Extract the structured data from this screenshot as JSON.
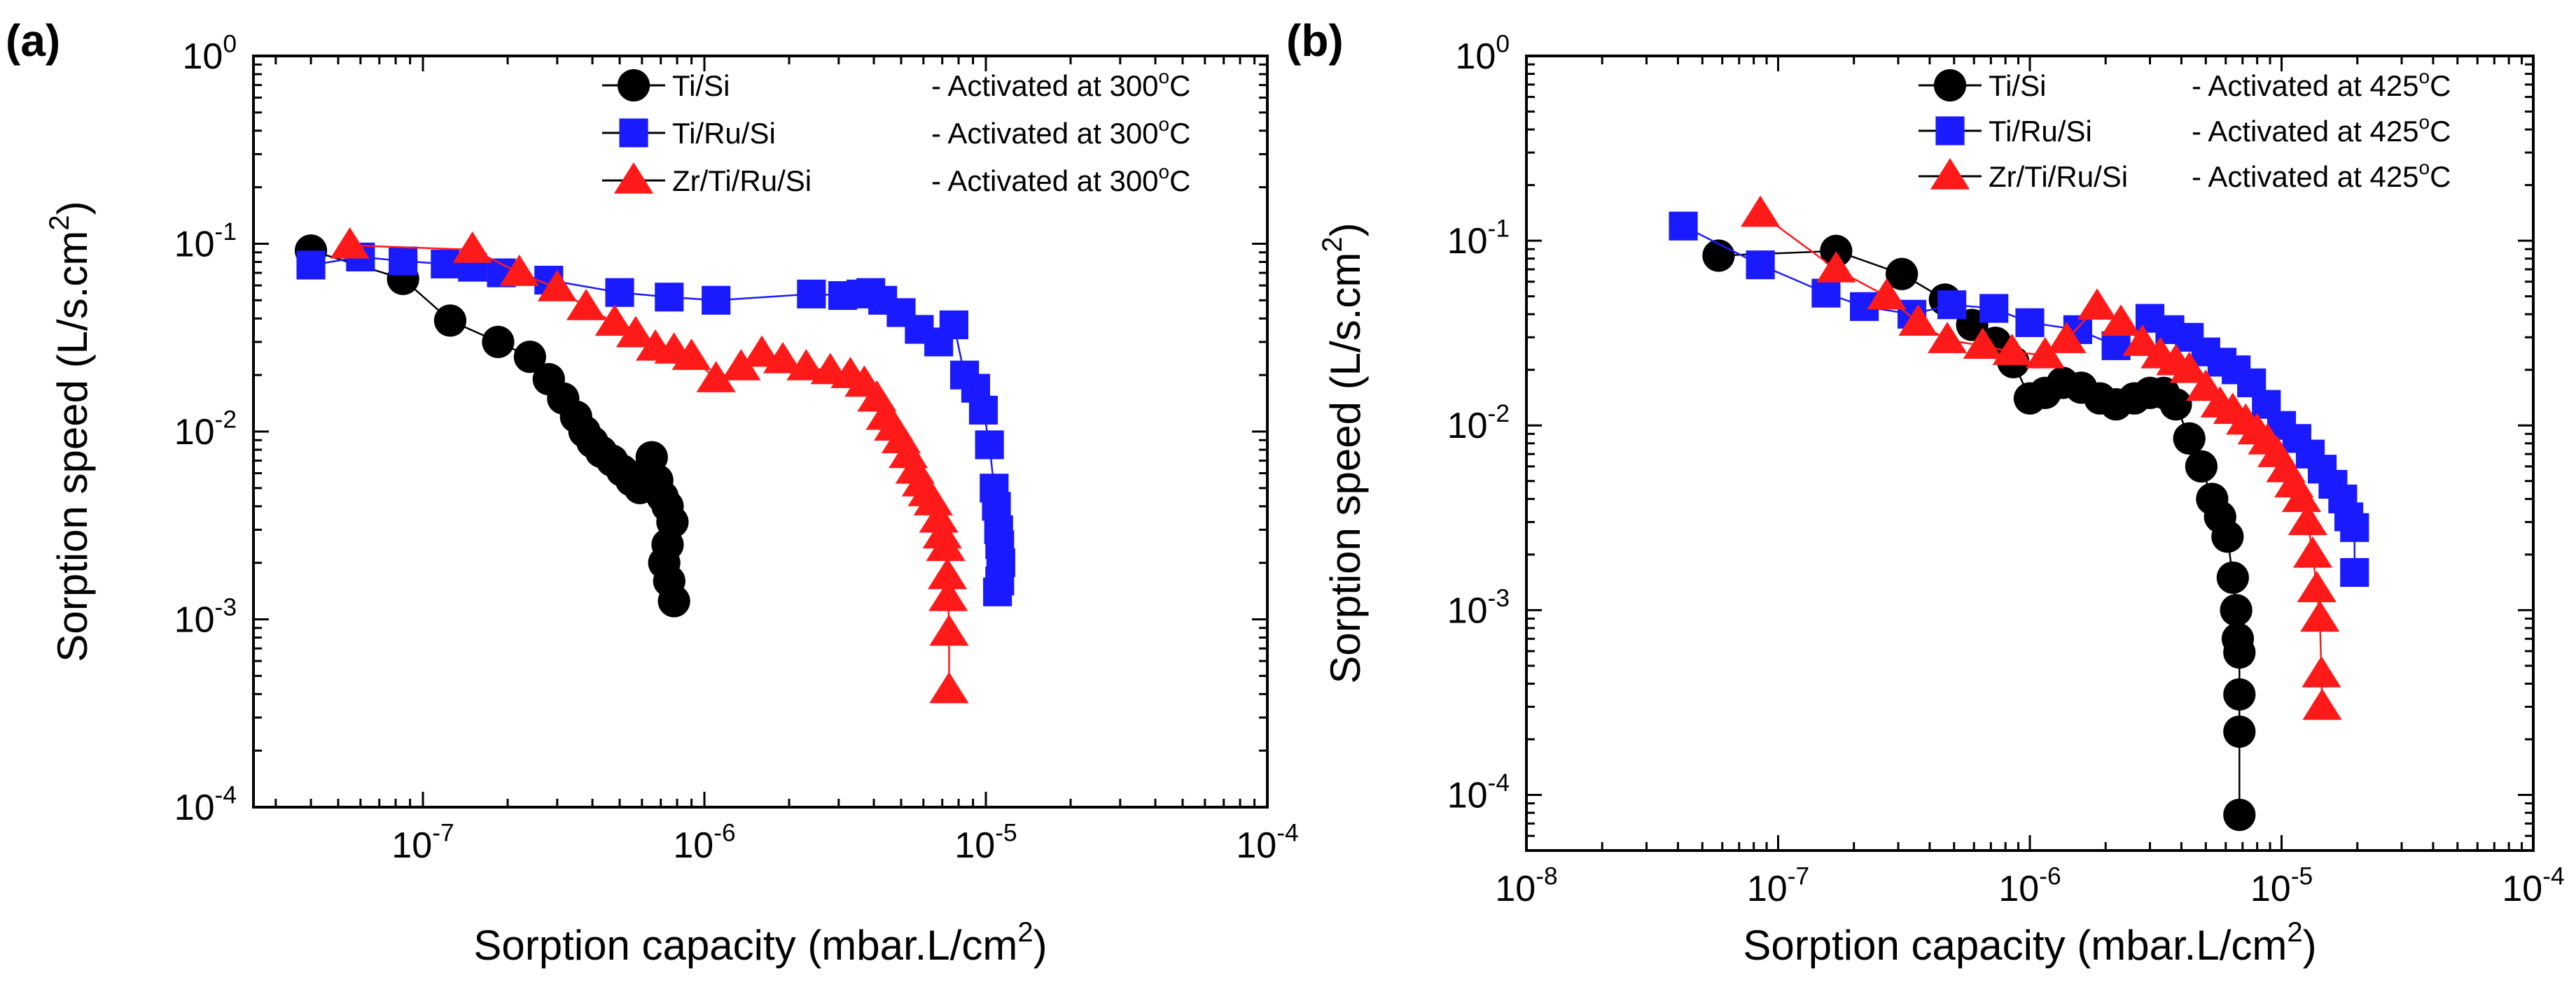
{
  "chart_data": [
    {
      "type": "scatter",
      "panel_label": "(a)",
      "xscale": "log",
      "yscale": "log",
      "xlim": [
        2.5e-08,
        0.0001
      ],
      "ylim": [
        0.0001,
        1
      ],
      "xlabel": "Sorption capacity (mbar.L/cm",
      "xlabel_sup": "2",
      "xlabel_end": ")",
      "ylabel": "Sorption speed (L/s.cm",
      "ylabel_sup": "2",
      "ylabel_end": ")",
      "x_ticks": [
        {
          "base": "10",
          "exp": "-7"
        },
        {
          "base": "10",
          "exp": "-6"
        },
        {
          "base": "10",
          "exp": "-5"
        },
        {
          "base": "10",
          "exp": "-4"
        }
      ],
      "y_ticks": [
        {
          "base": "10",
          "exp": "0"
        },
        {
          "base": "10",
          "exp": "-1"
        },
        {
          "base": "10",
          "exp": "-2"
        },
        {
          "base": "10",
          "exp": "-3"
        },
        {
          "base": "10",
          "exp": "-4"
        }
      ],
      "legend_position": "top-right",
      "series": [
        {
          "name": "Ti/Si",
          "note": "- Activated at 300",
          "deg": "o",
          "unit": "C",
          "color": "#000000",
          "marker": "circle",
          "x": [
            4e-08,
            8.5e-08,
            1.25e-07,
            1.85e-07,
            2.4e-07,
            2.8e-07,
            3.15e-07,
            3.5e-07,
            3.75e-07,
            4e-07,
            4.3e-07,
            4.7e-07,
            5.1e-07,
            5.5e-07,
            5.9e-07,
            6.2e-07,
            6.5e-07,
            6.8e-07,
            7.1e-07,
            7.4e-07,
            7.7e-07,
            7.4e-07,
            7.2e-07,
            7.5e-07,
            7.8e-07
          ],
          "y": [
            0.092,
            0.065,
            0.039,
            0.03,
            0.025,
            0.019,
            0.015,
            0.012,
            0.01,
            0.0088,
            0.0078,
            0.007,
            0.0062,
            0.0055,
            0.005,
            0.006,
            0.0073,
            0.0055,
            0.0045,
            0.004,
            0.0033,
            0.0025,
            0.002,
            0.0016,
            0.00125
          ]
        },
        {
          "name": "Ti/Ru/Si",
          "note": "- Activated at 300",
          "deg": "o",
          "unit": "C",
          "color": "#1a1aff",
          "marker": "square",
          "x": [
            4e-08,
            6e-08,
            8.5e-08,
            1.2e-07,
            1.5e-07,
            1.9e-07,
            2.8e-07,
            5e-07,
            7.5e-07,
            1.1e-06,
            2.4e-06,
            3.1e-06,
            3.6e-06,
            3.9e-06,
            4.3e-06,
            5e-06,
            5.8e-06,
            6.8e-06,
            7.7e-06,
            8.4e-06,
            9.2e-06,
            9.8e-06,
            1.03e-05,
            1.07e-05,
            1.09e-05,
            1.11e-05,
            1.12e-05,
            1.13e-05,
            1.12e-05,
            1.1e-05
          ],
          "y": [
            0.077,
            0.085,
            0.081,
            0.078,
            0.075,
            0.07,
            0.064,
            0.055,
            0.052,
            0.05,
            0.054,
            0.053,
            0.054,
            0.055,
            0.05,
            0.043,
            0.035,
            0.03,
            0.037,
            0.02,
            0.017,
            0.013,
            0.0085,
            0.005,
            0.004,
            0.003,
            0.0025,
            0.002,
            0.0016,
            0.0014
          ]
        },
        {
          "name": "Zr/Ti/Ru/Si",
          "note": "- Activated at 300",
          "deg": "o",
          "unit": "C",
          "color": "#ff1a1a",
          "marker": "triangle",
          "x": [
            5.5e-08,
            1.5e-07,
            2.2e-07,
            3e-07,
            3.8e-07,
            4.8e-07,
            5.7e-07,
            6.7e-07,
            7.8e-07,
            9e-07,
            1.1e-06,
            1.35e-06,
            1.6e-06,
            1.9e-06,
            2.3e-06,
            2.8e-06,
            3.3e-06,
            3.7e-06,
            4.1e-06,
            4.4e-06,
            4.7e-06,
            5e-06,
            5.3e-06,
            5.6e-06,
            5.9e-06,
            6.2e-06,
            6.5e-06,
            6.8e-06,
            7e-06,
            7.2e-06,
            7.3e-06,
            7.35e-06,
            7.4e-06,
            7.4e-06
          ],
          "y": [
            0.098,
            0.093,
            0.07,
            0.058,
            0.046,
            0.038,
            0.033,
            0.028,
            0.027,
            0.025,
            0.019,
            0.022,
            0.026,
            0.024,
            0.022,
            0.021,
            0.02,
            0.018,
            0.015,
            0.012,
            0.0105,
            0.009,
            0.0075,
            0.0062,
            0.0053,
            0.0047,
            0.0042,
            0.0034,
            0.0028,
            0.0024,
            0.0017,
            0.0013,
            0.00085,
            0.00042
          ]
        }
      ]
    },
    {
      "type": "scatter",
      "panel_label": "(b)",
      "xscale": "log",
      "yscale": "log",
      "xlim": [
        1e-08,
        0.0001
      ],
      "ylim": [
        5e-05,
        1
      ],
      "xlabel": "Sorption capacity (mbar.L/cm",
      "xlabel_sup": "2",
      "xlabel_end": ")",
      "ylabel": "Sorption speed (L/s.cm",
      "ylabel_sup": "2",
      "ylabel_end": ")",
      "x_ticks": [
        {
          "base": "10",
          "exp": "-8"
        },
        {
          "base": "10",
          "exp": "-7"
        },
        {
          "base": "10",
          "exp": "-6"
        },
        {
          "base": "10",
          "exp": "-5"
        },
        {
          "base": "10",
          "exp": "-4"
        }
      ],
      "y_ticks": [
        {
          "base": "10",
          "exp": "0"
        },
        {
          "base": "10",
          "exp": "-1"
        },
        {
          "base": "10",
          "exp": "-2"
        },
        {
          "base": "10",
          "exp": "-3"
        },
        {
          "base": "10",
          "exp": "-4"
        }
      ],
      "legend_position": "top-right",
      "series": [
        {
          "name": "Ti/Si",
          "note": "- Activated at 425",
          "deg": "o",
          "unit": "C",
          "color": "#000000",
          "marker": "circle",
          "x": [
            5.8e-08,
            1.7e-07,
            3.1e-07,
            4.6e-07,
            5.9e-07,
            7.3e-07,
            8.6e-07,
            1e-06,
            1.15e-06,
            1.35e-06,
            1.6e-06,
            1.9e-06,
            2.2e-06,
            2.6e-06,
            3e-06,
            3.4e-06,
            3.8e-06,
            4.3e-06,
            4.8e-06,
            5.3e-06,
            5.7e-06,
            6.1e-06,
            6.4e-06,
            6.6e-06,
            6.7e-06,
            6.8e-06,
            6.8e-06,
            6.8e-06,
            6.8e-06
          ],
          "y": [
            0.083,
            0.088,
            0.066,
            0.048,
            0.035,
            0.028,
            0.022,
            0.014,
            0.015,
            0.017,
            0.016,
            0.014,
            0.013,
            0.014,
            0.015,
            0.015,
            0.013,
            0.0085,
            0.006,
            0.004,
            0.0032,
            0.0025,
            0.0015,
            0.001,
            0.0007,
            0.00059,
            0.00035,
            0.00022,
            7.8e-05
          ]
        },
        {
          "name": "Ti/Ru/Si",
          "note": "- Activated at 425",
          "deg": "o",
          "unit": "C",
          "color": "#1a1aff",
          "marker": "square",
          "x": [
            4.2e-08,
            8.5e-08,
            1.55e-07,
            2.2e-07,
            3.4e-07,
            4.9e-07,
            7.2e-07,
            1e-06,
            1.55e-06,
            2.2e-06,
            3e-06,
            3.6e-06,
            4.3e-06,
            5e-06,
            5.8e-06,
            6.6e-06,
            7.6e-06,
            8.7e-06,
            1e-05,
            1.15e-05,
            1.3e-05,
            1.45e-05,
            1.6e-05,
            1.75e-05,
            1.85e-05,
            1.95e-05,
            1.95e-05
          ],
          "y": [
            0.12,
            0.074,
            0.052,
            0.044,
            0.04,
            0.045,
            0.043,
            0.036,
            0.033,
            0.027,
            0.038,
            0.033,
            0.03,
            0.025,
            0.022,
            0.02,
            0.017,
            0.013,
            0.01,
            0.0085,
            0.007,
            0.0058,
            0.0048,
            0.004,
            0.0032,
            0.0028,
            0.0016
          ]
        },
        {
          "name": "Zr/Ti/Ru/Si",
          "note": "- Activated at 425",
          "deg": "o",
          "unit": "C",
          "color": "#ff1a1a",
          "marker": "triangle",
          "x": [
            8.5e-08,
            1.7e-07,
            2.7e-07,
            3.6e-07,
            4.7e-07,
            6.5e-07,
            8.5e-07,
            1.15e-06,
            1.4e-06,
            1.85e-06,
            2.3e-06,
            2.8e-06,
            3.3e-06,
            3.8e-06,
            4.3e-06,
            5e-06,
            5.7e-06,
            6.4e-06,
            7.2e-06,
            8e-06,
            8.8e-06,
            9.6e-06,
            1.04e-05,
            1.12e-05,
            1.2e-05,
            1.27e-05,
            1.33e-05,
            1.38e-05,
            1.42e-05,
            1.44e-05,
            1.45e-05
          ],
          "y": [
            0.14,
            0.07,
            0.05,
            0.036,
            0.029,
            0.027,
            0.025,
            0.024,
            0.029,
            0.044,
            0.036,
            0.028,
            0.024,
            0.022,
            0.02,
            0.016,
            0.013,
            0.012,
            0.0105,
            0.0093,
            0.0082,
            0.007,
            0.0058,
            0.0048,
            0.004,
            0.003,
            0.002,
            0.0013,
            0.0009,
            0.00045,
            0.0003
          ]
        }
      ]
    }
  ]
}
